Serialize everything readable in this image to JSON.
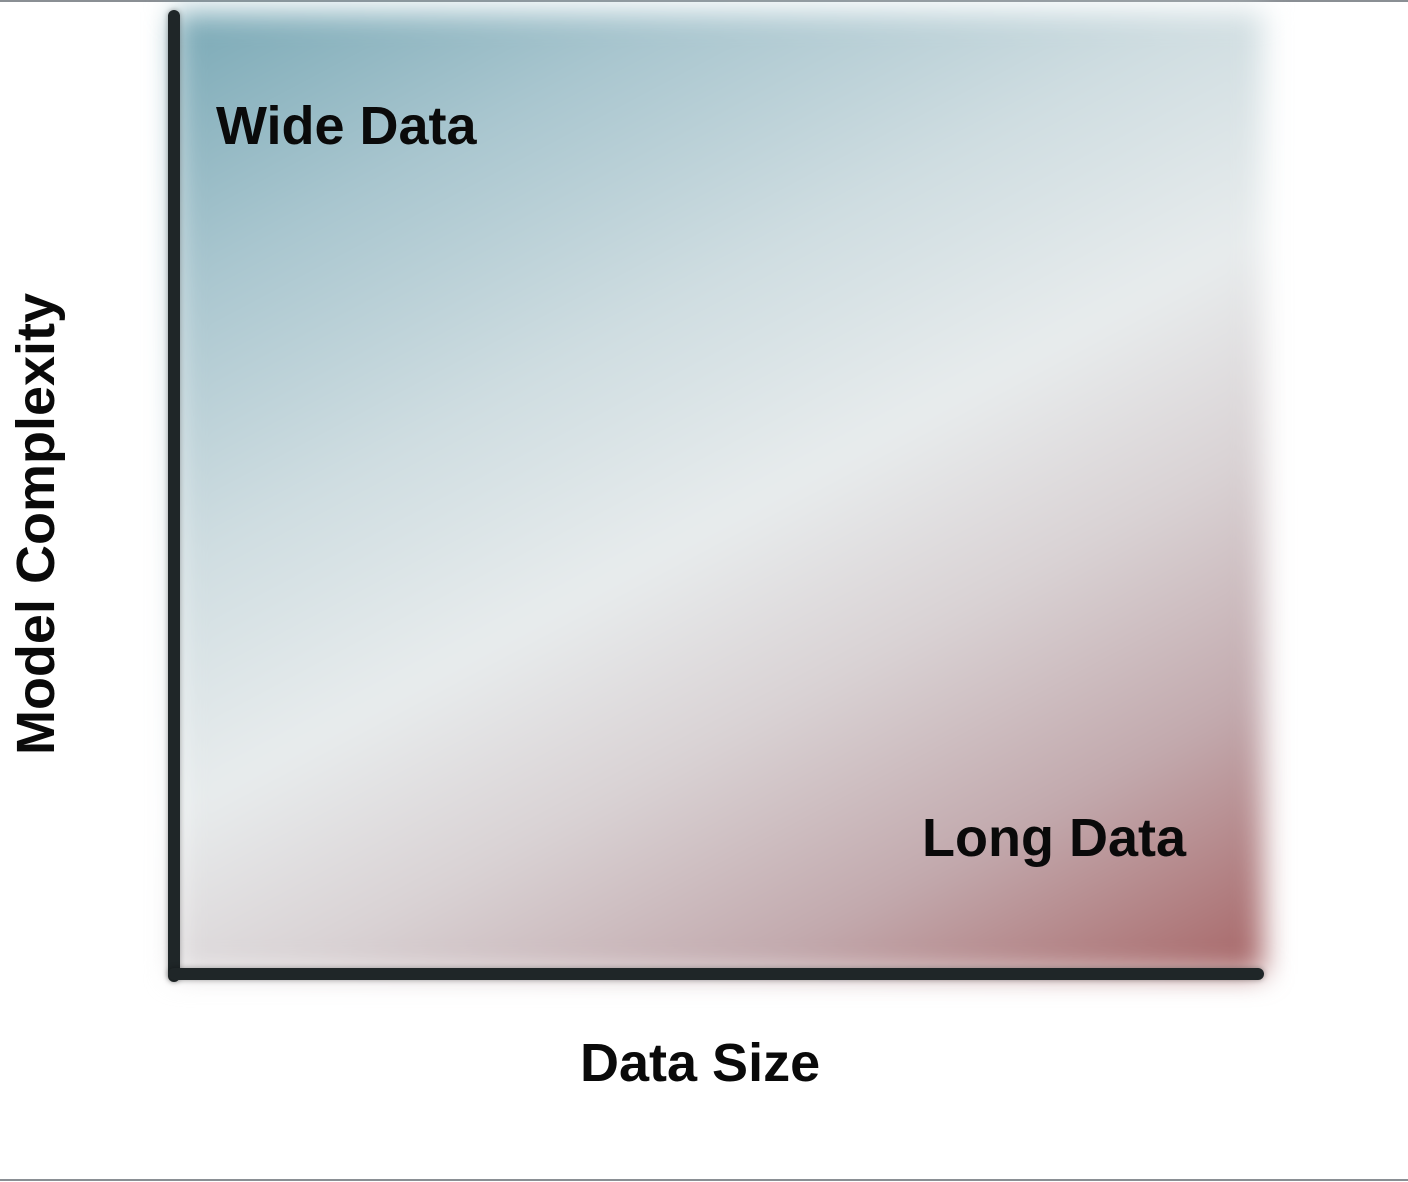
{
  "diagram": {
    "x_axis_title": "Data Size",
    "y_axis_title": "Model Complexity",
    "regions": [
      {
        "label": "Wide Data",
        "corner": "top-left",
        "color": "#7aa9b6"
      },
      {
        "label": "Long Data",
        "corner": "bottom-right",
        "color": "#a76566"
      }
    ],
    "colors": {
      "axis": "#1f2628",
      "text": "#0a0a0a",
      "gradient_start": "#7aa9b6",
      "gradient_mid": "#e8eced",
      "gradient_end": "#a76566"
    }
  }
}
